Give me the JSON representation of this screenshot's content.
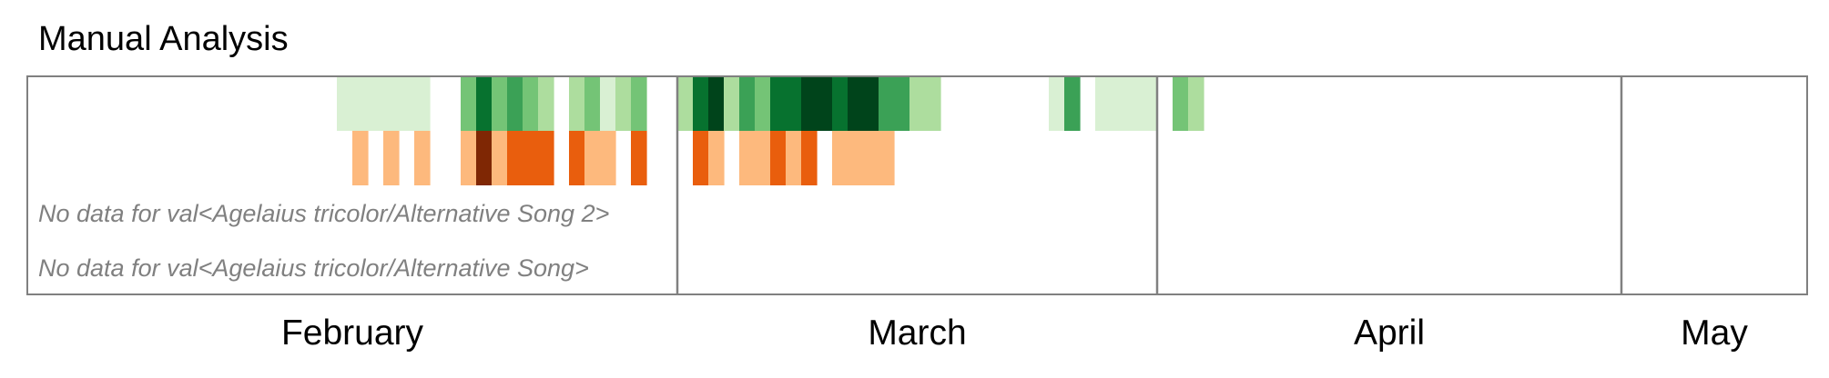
{
  "chart_data": {
    "type": "heatmap",
    "title": "Manual Analysis",
    "x_axis": {
      "type": "date",
      "range": [
        "2024-01-19",
        "2024-05-13"
      ]
    },
    "month_ticks": [
      {
        "label": "February",
        "date": "2024-02-01"
      },
      {
        "label": "March",
        "date": "2024-03-01"
      },
      {
        "label": "April",
        "date": "2024-04-01"
      },
      {
        "label": "May",
        "date": "2024-05-01"
      }
    ],
    "rows": [
      {
        "palette": "green",
        "colors": [
          "#d9f0d3",
          "#addd9e",
          "#74c476",
          "#3ba156",
          "#07722f",
          "#00441b"
        ],
        "cells": [
          {
            "date": "2024-02-08",
            "level": 1
          },
          {
            "date": "2024-02-09",
            "level": 1
          },
          {
            "date": "2024-02-10",
            "level": 1
          },
          {
            "date": "2024-02-11",
            "level": 1
          },
          {
            "date": "2024-02-12",
            "level": 1
          },
          {
            "date": "2024-02-13",
            "level": 1
          },
          {
            "date": "2024-02-16",
            "level": 3
          },
          {
            "date": "2024-02-17",
            "level": 5
          },
          {
            "date": "2024-02-18",
            "level": 3
          },
          {
            "date": "2024-02-19",
            "level": 4
          },
          {
            "date": "2024-02-20",
            "level": 3
          },
          {
            "date": "2024-02-21",
            "level": 2
          },
          {
            "date": "2024-02-23",
            "level": 2
          },
          {
            "date": "2024-02-24",
            "level": 3
          },
          {
            "date": "2024-02-25",
            "level": 1
          },
          {
            "date": "2024-02-26",
            "level": 2
          },
          {
            "date": "2024-02-27",
            "level": 3
          },
          {
            "date": "2024-03-01",
            "level": 2
          },
          {
            "date": "2024-03-02",
            "level": 5
          },
          {
            "date": "2024-03-03",
            "level": 6
          },
          {
            "date": "2024-03-04",
            "level": 2
          },
          {
            "date": "2024-03-05",
            "level": 4
          },
          {
            "date": "2024-03-06",
            "level": 3
          },
          {
            "date": "2024-03-07",
            "level": 5
          },
          {
            "date": "2024-03-08",
            "level": 5
          },
          {
            "date": "2024-03-09",
            "level": 6
          },
          {
            "date": "2024-03-10",
            "level": 6
          },
          {
            "date": "2024-03-11",
            "level": 5
          },
          {
            "date": "2024-03-12",
            "level": 6
          },
          {
            "date": "2024-03-13",
            "level": 6
          },
          {
            "date": "2024-03-14",
            "level": 4
          },
          {
            "date": "2024-03-15",
            "level": 4
          },
          {
            "date": "2024-03-16",
            "level": 2
          },
          {
            "date": "2024-03-17",
            "level": 2
          },
          {
            "date": "2024-03-25",
            "level": 1
          },
          {
            "date": "2024-03-26",
            "level": 4
          },
          {
            "date": "2024-03-28",
            "level": 1
          },
          {
            "date": "2024-03-29",
            "level": 1
          },
          {
            "date": "2024-03-30",
            "level": 1
          },
          {
            "date": "2024-03-31",
            "level": 1
          },
          {
            "date": "2024-04-02",
            "level": 3
          },
          {
            "date": "2024-04-03",
            "level": 2
          }
        ]
      },
      {
        "palette": "orange",
        "colors": [
          "#fdb97d",
          "#e95e0d",
          "#7f2704"
        ],
        "cells": [
          {
            "date": "2024-02-09",
            "level": 1
          },
          {
            "date": "2024-02-11",
            "level": 1
          },
          {
            "date": "2024-02-13",
            "level": 1
          },
          {
            "date": "2024-02-16",
            "level": 1
          },
          {
            "date": "2024-02-17",
            "level": 3
          },
          {
            "date": "2024-02-18",
            "level": 1
          },
          {
            "date": "2024-02-19",
            "level": 2
          },
          {
            "date": "2024-02-20",
            "level": 2
          },
          {
            "date": "2024-02-21",
            "level": 2
          },
          {
            "date": "2024-02-23",
            "level": 2
          },
          {
            "date": "2024-02-24",
            "level": 1
          },
          {
            "date": "2024-02-25",
            "level": 1
          },
          {
            "date": "2024-02-27",
            "level": 2
          },
          {
            "date": "2024-03-02",
            "level": 2
          },
          {
            "date": "2024-03-03",
            "level": 1
          },
          {
            "date": "2024-03-05",
            "level": 1
          },
          {
            "date": "2024-03-06",
            "level": 1
          },
          {
            "date": "2024-03-07",
            "level": 2
          },
          {
            "date": "2024-03-08",
            "level": 1
          },
          {
            "date": "2024-03-09",
            "level": 2
          },
          {
            "date": "2024-03-11",
            "level": 1
          },
          {
            "date": "2024-03-12",
            "level": 1
          },
          {
            "date": "2024-03-13",
            "level": 1
          },
          {
            "date": "2024-03-14",
            "level": 1
          }
        ]
      },
      {
        "no_data_text": "No data for val<Agelaius tricolor/Alternative Song 2>"
      },
      {
        "no_data_text": "No data for val<Agelaius tricolor/Alternative Song>"
      }
    ]
  }
}
